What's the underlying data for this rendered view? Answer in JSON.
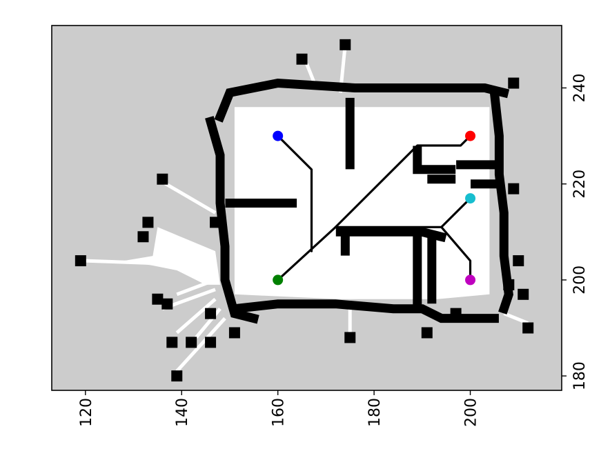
{
  "chart_data": {
    "type": "scatter",
    "title": "",
    "xlabel": "",
    "ylabel": "",
    "x_axis": {
      "position": "bottom",
      "range": [
        113,
        219
      ],
      "ticks": [
        "120",
        "140",
        "160",
        "180",
        "200"
      ],
      "label_rotation": "vertical"
    },
    "y_axis": {
      "position": "right",
      "range": [
        177,
        253
      ],
      "ticks": [
        "180",
        "200",
        "220",
        "240"
      ],
      "label_rotation": "vertical"
    },
    "grid": false,
    "legend": "none",
    "colors": {
      "unknown": "#cccccc",
      "free": "#ffffff",
      "occupied": "#000000",
      "path": "#000000"
    },
    "points": [
      {
        "x": 160,
        "y": 230,
        "color": "#0000ff"
      },
      {
        "x": 200,
        "y": 230,
        "color": "#ff0000"
      },
      {
        "x": 200,
        "y": 217,
        "color": "#17becf"
      },
      {
        "x": 160,
        "y": 200,
        "color": "#008000"
      },
      {
        "x": 200,
        "y": 200,
        "color": "#bf00bf"
      }
    ],
    "paths": [
      [
        [
          160,
          230
        ],
        [
          167,
          223
        ],
        [
          167,
          206
        ]
      ],
      [
        [
          160,
          200
        ],
        [
          172,
          211
        ],
        [
          189,
          228
        ],
        [
          198,
          228
        ],
        [
          200,
          230
        ]
      ],
      [
        [
          172,
          211
        ],
        [
          194,
          211
        ]
      ],
      [
        [
          194,
          211
        ],
        [
          200,
          217
        ]
      ],
      [
        [
          194,
          211
        ],
        [
          200,
          204
        ],
        [
          200,
          200
        ]
      ]
    ],
    "walls": [
      [
        [
          148,
          234
        ],
        [
          150,
          239
        ],
        [
          160,
          241
        ],
        [
          176,
          240
        ],
        [
          187,
          240
        ],
        [
          203,
          240
        ],
        [
          207,
          239
        ]
      ],
      [
        [
          146,
          233
        ],
        [
          148,
          226
        ],
        [
          148,
          216
        ],
        [
          149,
          207
        ],
        [
          149,
          200
        ],
        [
          151,
          193
        ],
        [
          155,
          192
        ]
      ],
      [
        [
          151,
          194
        ],
        [
          160,
          195
        ],
        [
          172,
          195
        ],
        [
          184,
          194
        ],
        [
          190,
          194
        ],
        [
          194,
          192
        ],
        [
          202,
          192
        ],
        [
          205,
          192
        ]
      ],
      [
        [
          205,
          239
        ],
        [
          206,
          230
        ],
        [
          206,
          222
        ],
        [
          207,
          214
        ],
        [
          207,
          205
        ],
        [
          208,
          197
        ],
        [
          207,
          194
        ]
      ],
      [
        [
          150,
          216
        ],
        [
          163,
          216
        ]
      ],
      [
        [
          175,
          237
        ],
        [
          175,
          224
        ]
      ],
      [
        [
          173,
          210
        ],
        [
          180,
          210
        ],
        [
          190,
          210
        ],
        [
          194,
          209
        ]
      ],
      [
        [
          174,
          210
        ],
        [
          174,
          206
        ]
      ],
      [
        [
          189,
          210
        ],
        [
          189,
          195
        ]
      ],
      [
        [
          192,
          209
        ],
        [
          192,
          196
        ]
      ],
      [
        [
          189,
          227
        ],
        [
          189,
          223
        ],
        [
          196,
          223
        ]
      ],
      [
        [
          198,
          224
        ],
        [
          205,
          224
        ]
      ],
      [
        [
          192,
          221
        ],
        [
          196,
          221
        ]
      ],
      [
        [
          201,
          220
        ],
        [
          205,
          220
        ]
      ]
    ],
    "obstacles": [
      [
        136,
        221
      ],
      [
        119,
        204
      ],
      [
        133,
        212
      ],
      [
        132,
        209
      ],
      [
        135,
        196
      ],
      [
        137,
        195
      ],
      [
        138,
        187
      ],
      [
        142,
        187
      ],
      [
        139,
        180
      ],
      [
        146,
        187
      ],
      [
        146,
        193
      ],
      [
        151,
        189
      ],
      [
        175,
        188
      ],
      [
        191,
        189
      ],
      [
        212,
        190
      ],
      [
        211,
        197
      ],
      [
        208,
        199
      ],
      [
        210,
        204
      ],
      [
        209,
        219
      ],
      [
        209,
        241
      ],
      [
        165,
        246
      ],
      [
        174,
        249
      ],
      [
        147,
        212
      ],
      [
        197,
        193
      ]
    ],
    "free_regions": [
      [
        [
          151,
          200
        ],
        [
          151,
          236
        ],
        [
          204,
          236
        ],
        [
          204,
          197
        ],
        [
          193,
          196
        ],
        [
          173,
          196
        ],
        [
          151,
          197
        ]
      ],
      [
        [
          147,
          206
        ],
        [
          135,
          211
        ],
        [
          134,
          205
        ],
        [
          128,
          204
        ],
        [
          134,
          203
        ],
        [
          139,
          202
        ],
        [
          145,
          199
        ],
        [
          148,
          199
        ]
      ]
    ],
    "rays": [
      [
        [
          147,
          214
        ],
        [
          135,
          221
        ]
      ],
      [
        [
          147,
          203
        ],
        [
          120,
          204
        ]
      ],
      [
        [
          147,
          200
        ],
        [
          139,
          197
        ]
      ],
      [
        [
          147,
          198
        ],
        [
          136,
          194
        ]
      ],
      [
        [
          147,
          196
        ],
        [
          139,
          189
        ]
      ],
      [
        [
          148,
          194
        ],
        [
          143,
          188
        ]
      ],
      [
        [
          149,
          192
        ],
        [
          139,
          181
        ]
      ],
      [
        [
          168,
          240
        ],
        [
          166,
          245
        ]
      ],
      [
        [
          173,
          239
        ],
        [
          174,
          249
        ]
      ],
      [
        [
          175,
          194
        ],
        [
          175,
          189
        ]
      ],
      [
        [
          207,
          193
        ],
        [
          212,
          191
        ]
      ]
    ]
  }
}
